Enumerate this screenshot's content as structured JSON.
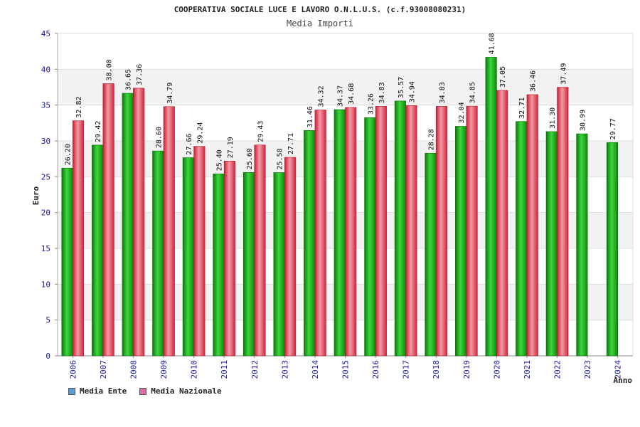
{
  "colors": {
    "ente_bar": "#19b419",
    "nazionale_bar": "#e0384f",
    "legend_ente": "#5b9bd5",
    "legend_nazionale": "#d66fa6",
    "band": "#f2f2f2",
    "grid": "#dddddd"
  },
  "legend": [
    {
      "label": "Media Ente"
    },
    {
      "label": "Media Nazionale"
    }
  ],
  "chart_data": {
    "type": "bar",
    "title": "COOPERATIVA SOCIALE LUCE E LAVORO O.N.L.U.S. (c.f.93008080231)",
    "subtitle": "Media Importi",
    "xlabel": "Anno",
    "ylabel": "Euro",
    "ylim": [
      0,
      45
    ],
    "yticks": [
      0,
      5,
      10,
      15,
      20,
      25,
      30,
      35,
      40,
      45
    ],
    "categories": [
      "2006",
      "2007",
      "2008",
      "2009",
      "2010",
      "2011",
      "2012",
      "2013",
      "2014",
      "2015",
      "2016",
      "2017",
      "2018",
      "2019",
      "2020",
      "2021",
      "2022",
      "2023",
      "2024"
    ],
    "series": [
      {
        "name": "Media Ente",
        "values": [
          26.2,
          29.42,
          36.65,
          28.6,
          27.66,
          25.4,
          25.6,
          25.58,
          31.46,
          34.37,
          33.26,
          35.57,
          28.28,
          32.04,
          41.68,
          32.71,
          31.3,
          30.99,
          29.77
        ],
        "labels": [
          "26.20",
          "29.42",
          "36.65",
          "28.60",
          "27.66",
          "25.40",
          "25.60",
          "25.58",
          "31.46",
          "34.37",
          "33.26",
          "35.57",
          "28.28",
          "32.04",
          "41.68",
          "32.71",
          "31.30",
          "30.99",
          "29.77"
        ]
      },
      {
        "name": "Media Nazionale",
        "values": [
          32.82,
          38.0,
          37.36,
          34.79,
          29.24,
          27.19,
          29.43,
          27.71,
          34.32,
          34.68,
          34.83,
          34.94,
          34.83,
          34.85,
          37.05,
          36.46,
          37.49,
          null,
          null
        ],
        "labels": [
          "32.82",
          "38.00",
          "37.36",
          "34.79",
          "29.24",
          "27.19",
          "29.43",
          "27.71",
          "34.32",
          "34.68",
          "34.83",
          "34.94",
          "34.83",
          "34.85",
          "37.05",
          "36.46",
          "37.49",
          "",
          ""
        ]
      }
    ],
    "grid": true,
    "legend_position": "bottom-left"
  }
}
